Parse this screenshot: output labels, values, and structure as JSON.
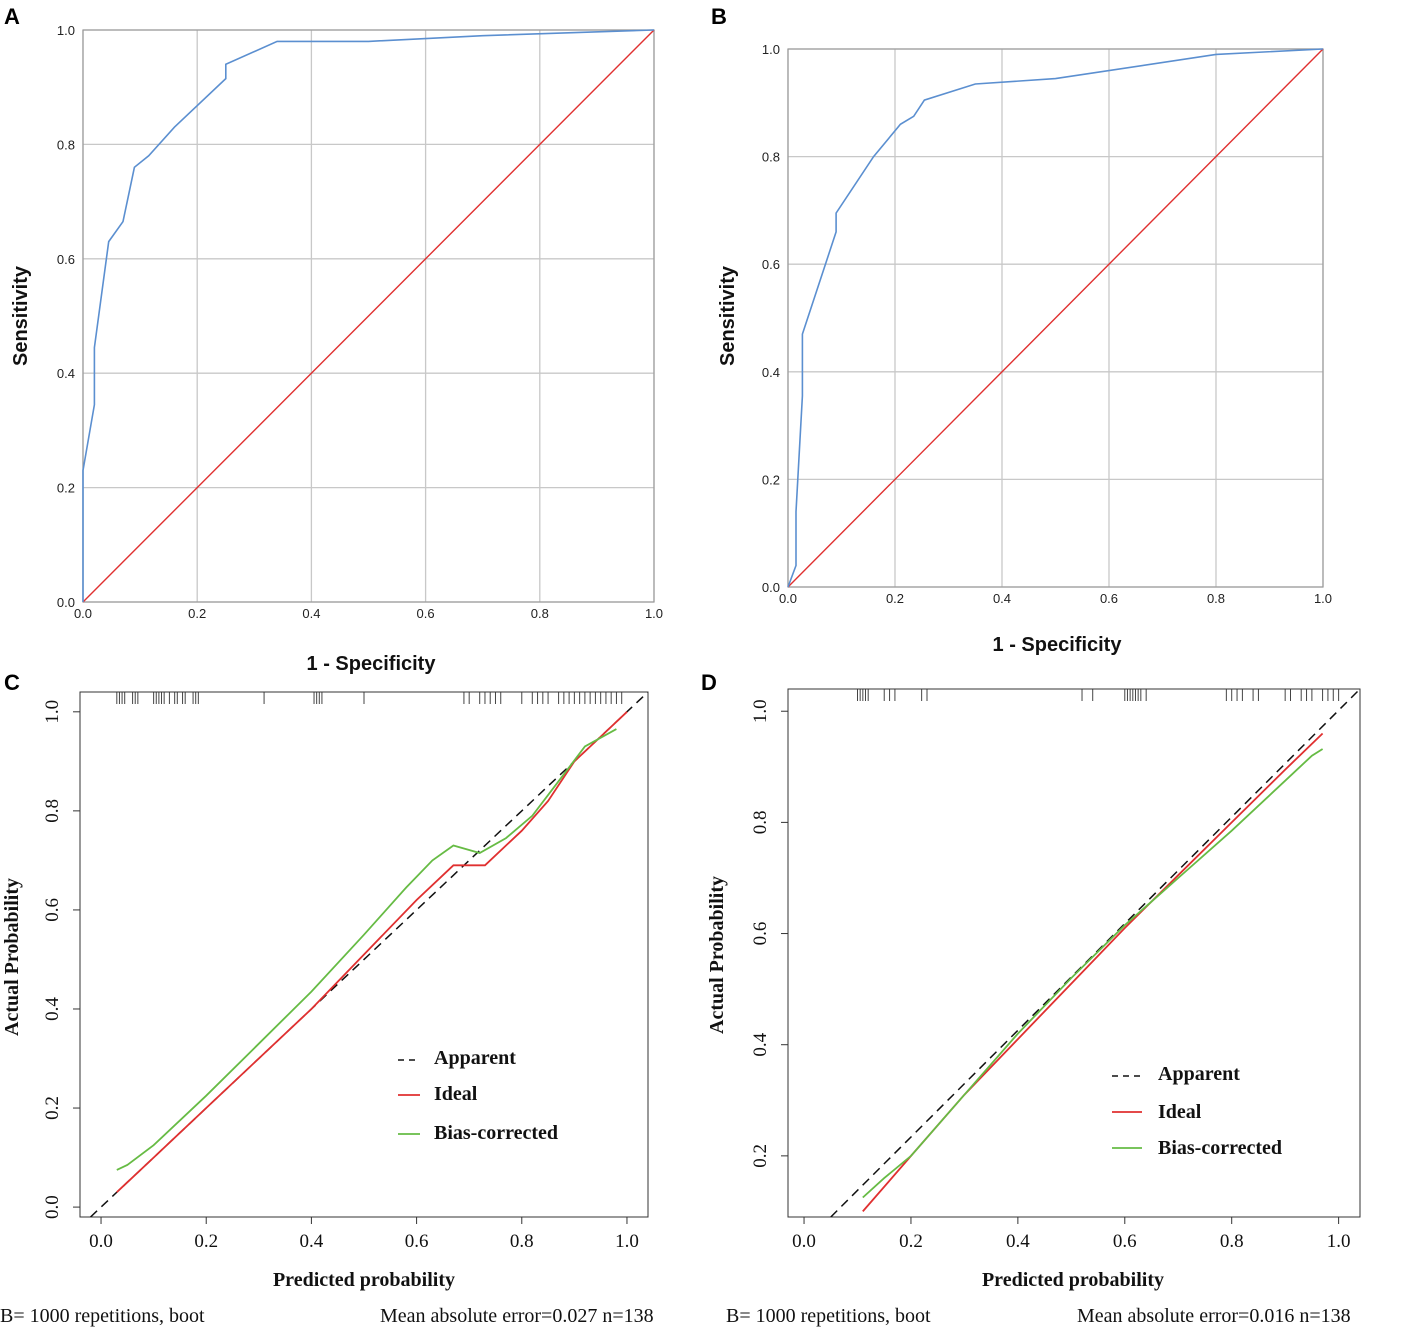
{
  "chart_data": [
    {
      "id": "A",
      "panel_label": "A",
      "type": "line",
      "title": "",
      "xlabel": "1 - Specificity",
      "ylabel": "Sensitivity",
      "xlim": [
        0,
        1
      ],
      "ylim": [
        0,
        1
      ],
      "grid": true,
      "xticks": [
        "0.0",
        "0.2",
        "0.4",
        "0.6",
        "0.8",
        "1.0"
      ],
      "yticks": [
        "0.0",
        "0.2",
        "0.4",
        "0.6",
        "0.8",
        "1.0"
      ],
      "colors": {
        "roc": "#5b8fd0",
        "reference": "#e03030",
        "grid": "#c8c8c8"
      },
      "series": [
        {
          "name": "ROC",
          "x": [
            0,
            0,
            0.02,
            0.02,
            0.045,
            0.07,
            0.09,
            0.115,
            0.16,
            0.25,
            0.25,
            0.34,
            0.5,
            0.7,
            1.0
          ],
          "y": [
            0,
            0.23,
            0.345,
            0.445,
            0.63,
            0.665,
            0.76,
            0.78,
            0.83,
            0.915,
            0.94,
            0.98,
            0.98,
            0.99,
            1.0
          ]
        },
        {
          "name": "Reference",
          "x": [
            0,
            1
          ],
          "y": [
            0,
            1
          ]
        }
      ]
    },
    {
      "id": "B",
      "panel_label": "B",
      "type": "line",
      "title": "",
      "xlabel": "1 - Specificity",
      "ylabel": "Sensitivity",
      "xlim": [
        0,
        1
      ],
      "ylim": [
        0,
        1
      ],
      "grid": true,
      "xticks": [
        "0.0",
        "0.2",
        "0.4",
        "0.6",
        "0.8",
        "1.0"
      ],
      "yticks": [
        "0.0",
        "0.2",
        "0.4",
        "0.6",
        "0.8",
        "1.0"
      ],
      "colors": {
        "roc": "#5b8fd0",
        "reference": "#e03030",
        "grid": "#c8c8c8"
      },
      "series": [
        {
          "name": "ROC",
          "x": [
            0,
            0.015,
            0.015,
            0.027,
            0.027,
            0.09,
            0.09,
            0.16,
            0.21,
            0.235,
            0.255,
            0.35,
            0.5,
            0.8,
            1.0
          ],
          "y": [
            0,
            0.04,
            0.14,
            0.355,
            0.47,
            0.66,
            0.695,
            0.8,
            0.86,
            0.875,
            0.905,
            0.935,
            0.945,
            0.99,
            1.0
          ]
        },
        {
          "name": "Reference",
          "x": [
            0,
            1
          ],
          "y": [
            0,
            1
          ]
        }
      ]
    },
    {
      "id": "C",
      "panel_label": "C",
      "type": "line",
      "title": "",
      "xlabel": "Predicted probability",
      "ylabel": "Actual Probability",
      "xlim": [
        -0.04,
        1.04
      ],
      "ylim": [
        -0.02,
        1.04
      ],
      "grid": false,
      "xticks": [
        "0.0",
        "0.2",
        "0.4",
        "0.6",
        "0.8",
        "1.0"
      ],
      "yticks": [
        "0.0",
        "0.2",
        "0.4",
        "0.6",
        "0.8",
        "1.0"
      ],
      "colors": {
        "apparent": "#111111",
        "ideal": "#e03030",
        "bias": "#66bb44"
      },
      "legend": [
        {
          "label": "Apparent",
          "style": "dashed",
          "color": "#111111"
        },
        {
          "label": "Ideal",
          "style": "solid",
          "color": "#e03030"
        },
        {
          "label": "Bias-corrected",
          "style": "solid",
          "color": "#66bb44"
        }
      ],
      "series": [
        {
          "name": "Apparent",
          "x": [
            -0.02,
            1.04
          ],
          "y": [
            -0.02,
            1.04
          ]
        },
        {
          "name": "Ideal",
          "x": [
            0.03,
            0.1,
            0.2,
            0.3,
            0.4,
            0.5,
            0.6,
            0.67,
            0.7,
            0.73,
            0.77,
            0.8,
            0.85,
            0.9,
            0.95,
            1.0
          ],
          "y": [
            0.03,
            0.1,
            0.2,
            0.3,
            0.4,
            0.51,
            0.62,
            0.69,
            0.69,
            0.69,
            0.73,
            0.76,
            0.82,
            0.9,
            0.95,
            1.0
          ]
        },
        {
          "name": "Bias-corrected",
          "x": [
            0.03,
            0.05,
            0.1,
            0.2,
            0.3,
            0.4,
            0.5,
            0.58,
            0.63,
            0.67,
            0.72,
            0.77,
            0.82,
            0.87,
            0.92,
            0.98
          ],
          "y": [
            0.075,
            0.085,
            0.125,
            0.225,
            0.33,
            0.435,
            0.55,
            0.645,
            0.7,
            0.73,
            0.715,
            0.745,
            0.79,
            0.86,
            0.93,
            0.965
          ]
        }
      ],
      "rug": [
        0.03,
        0.035,
        0.04,
        0.045,
        0.06,
        0.065,
        0.07,
        0.1,
        0.105,
        0.11,
        0.115,
        0.12,
        0.13,
        0.14,
        0.145,
        0.155,
        0.16,
        0.175,
        0.18,
        0.185,
        0.31,
        0.405,
        0.41,
        0.415,
        0.42,
        0.5,
        0.69,
        0.7,
        0.72,
        0.73,
        0.74,
        0.75,
        0.76,
        0.8,
        0.82,
        0.83,
        0.84,
        0.85,
        0.87,
        0.88,
        0.89,
        0.9,
        0.91,
        0.92,
        0.93,
        0.94,
        0.95,
        0.96,
        0.97,
        0.98,
        0.99
      ],
      "footer_left": "B= 1000 repetitions, boot",
      "footer_right": "Mean absolute error=0.027 n=138"
    },
    {
      "id": "D",
      "panel_label": "D",
      "type": "line",
      "title": "",
      "xlabel": "Predicted probability",
      "ylabel": "Actual Probability",
      "xlim": [
        -0.03,
        1.04
      ],
      "ylim": [
        0.09,
        1.04
      ],
      "grid": false,
      "xticks": [
        "0.0",
        "0.2",
        "0.4",
        "0.6",
        "0.8",
        "1.0"
      ],
      "yticks": [
        "0.2",
        "0.4",
        "0.6",
        "0.8",
        "1.0"
      ],
      "colors": {
        "apparent": "#111111",
        "ideal": "#e03030",
        "bias": "#66bb44"
      },
      "legend": [
        {
          "label": "Apparent",
          "style": "dashed",
          "color": "#111111"
        },
        {
          "label": "Ideal",
          "style": "solid",
          "color": "#e03030"
        },
        {
          "label": "Bias-corrected",
          "style": "solid",
          "color": "#66bb44"
        }
      ],
      "series": [
        {
          "name": "Apparent",
          "x": [
            0.05,
            1.04
          ],
          "y": [
            0.09,
            1.04
          ]
        },
        {
          "name": "Ideal",
          "x": [
            0.11,
            0.2,
            0.3,
            0.4,
            0.5,
            0.6,
            0.7,
            0.8,
            0.9,
            0.97
          ],
          "y": [
            0.1,
            0.2,
            0.31,
            0.41,
            0.51,
            0.61,
            0.705,
            0.8,
            0.895,
            0.96
          ]
        },
        {
          "name": "Bias-corrected",
          "x": [
            0.11,
            0.15,
            0.2,
            0.3,
            0.4,
            0.5,
            0.6,
            0.7,
            0.8,
            0.9,
            0.95,
            0.97
          ],
          "y": [
            0.125,
            0.16,
            0.2,
            0.31,
            0.42,
            0.52,
            0.615,
            0.7,
            0.785,
            0.875,
            0.92,
            0.932
          ]
        }
      ],
      "rug": [
        0.1,
        0.105,
        0.11,
        0.115,
        0.12,
        0.15,
        0.16,
        0.17,
        0.22,
        0.23,
        0.52,
        0.54,
        0.6,
        0.605,
        0.61,
        0.615,
        0.62,
        0.625,
        0.63,
        0.64,
        0.79,
        0.8,
        0.81,
        0.82,
        0.84,
        0.85,
        0.9,
        0.91,
        0.93,
        0.94,
        0.95,
        0.97,
        0.98,
        0.99,
        1.0
      ],
      "footer_left": "B= 1000 repetitions, boot",
      "footer_right": "Mean absolute error=0.016 n=138"
    }
  ]
}
